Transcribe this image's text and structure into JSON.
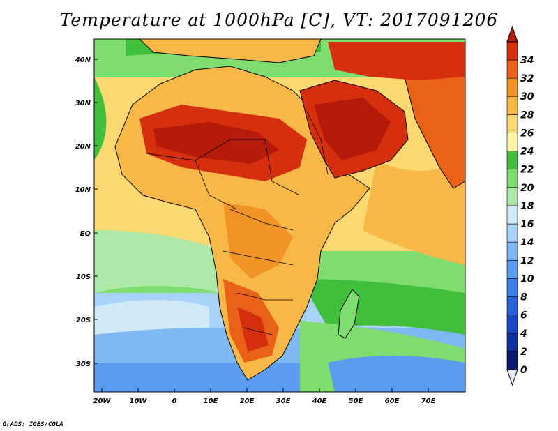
{
  "title": "Temperature at 1000hPa [C], VT: 2017091206",
  "credit": "GrADS: IGES/COLA",
  "map": {
    "lon_labels": [
      "20W",
      "10W",
      "0",
      "10E",
      "20E",
      "30E",
      "40E",
      "50E",
      "60E",
      "70E"
    ],
    "lat_labels": [
      "40N",
      "30N",
      "20N",
      "10N",
      "EQ",
      "10S",
      "20S",
      "30S"
    ]
  },
  "colorbar": {
    "labels": [
      "0",
      "2",
      "4",
      "6",
      "8",
      "10",
      "12",
      "14",
      "16",
      "18",
      "20",
      "22",
      "24",
      "26",
      "28",
      "30",
      "32",
      "34"
    ],
    "colors": [
      "#0a1a70",
      "#0f2f9f",
      "#1a46c8",
      "#2a62dc",
      "#3f80e8",
      "#5c9cf0",
      "#80b8f6",
      "#a8d2fa",
      "#cfeaf6",
      "#aee8a8",
      "#7fdc6e",
      "#3fbf3c",
      "#fff3a6",
      "#fbd870",
      "#f8b848",
      "#f29425",
      "#ea6218",
      "#d62f0e",
      "#b51a0a"
    ]
  }
}
